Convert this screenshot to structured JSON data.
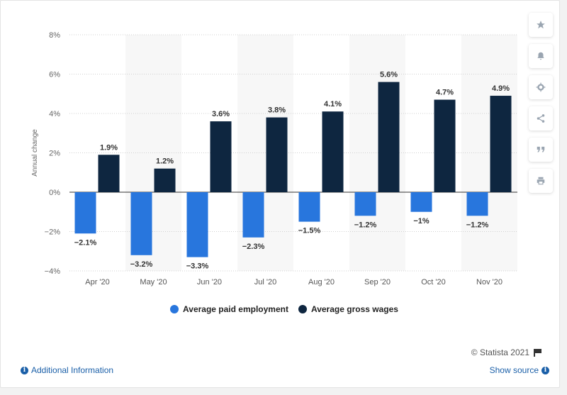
{
  "chart_data": {
    "type": "bar",
    "categories": [
      "Apr '20",
      "May '20",
      "Jun '20",
      "Jul '20",
      "Aug '20",
      "Sep '20",
      "Oct '20",
      "Nov '20"
    ],
    "series": [
      {
        "name": "Average paid employment",
        "color": "#2876dd",
        "values": [
          -2.1,
          -3.2,
          -3.3,
          -2.3,
          -1.5,
          -1.2,
          -1.0,
          -1.2
        ],
        "labels": [
          "−2.1%",
          "−3.2%",
          "−3.3%",
          "−2.3%",
          "−1.5%",
          "−1.2%",
          "−1%",
          "−1.2%"
        ]
      },
      {
        "name": "Average gross wages",
        "color": "#0e2640",
        "values": [
          1.9,
          1.2,
          3.6,
          3.8,
          4.1,
          5.6,
          4.7,
          4.9
        ],
        "labels": [
          "1.9%",
          "1.2%",
          "3.6%",
          "3.8%",
          "4.1%",
          "5.6%",
          "4.7%",
          "4.9%"
        ]
      }
    ],
    "ylabel": "Annual change",
    "ylim": [
      -4,
      8
    ],
    "yticks": [
      -4,
      -2,
      0,
      2,
      4,
      6,
      8
    ],
    "ytick_labels": [
      "−4%",
      "−2%",
      "0%",
      "2%",
      "4%",
      "6%",
      "8%"
    ],
    "grid": true,
    "legend": "bottom"
  },
  "sidebar": {
    "icons": [
      "star-icon",
      "bell-icon",
      "gear-icon",
      "share-icon",
      "quote-icon",
      "print-icon"
    ]
  },
  "footer": {
    "credit": "© Statista 2021",
    "additional_info": "Additional Information",
    "show_source": "Show source"
  }
}
